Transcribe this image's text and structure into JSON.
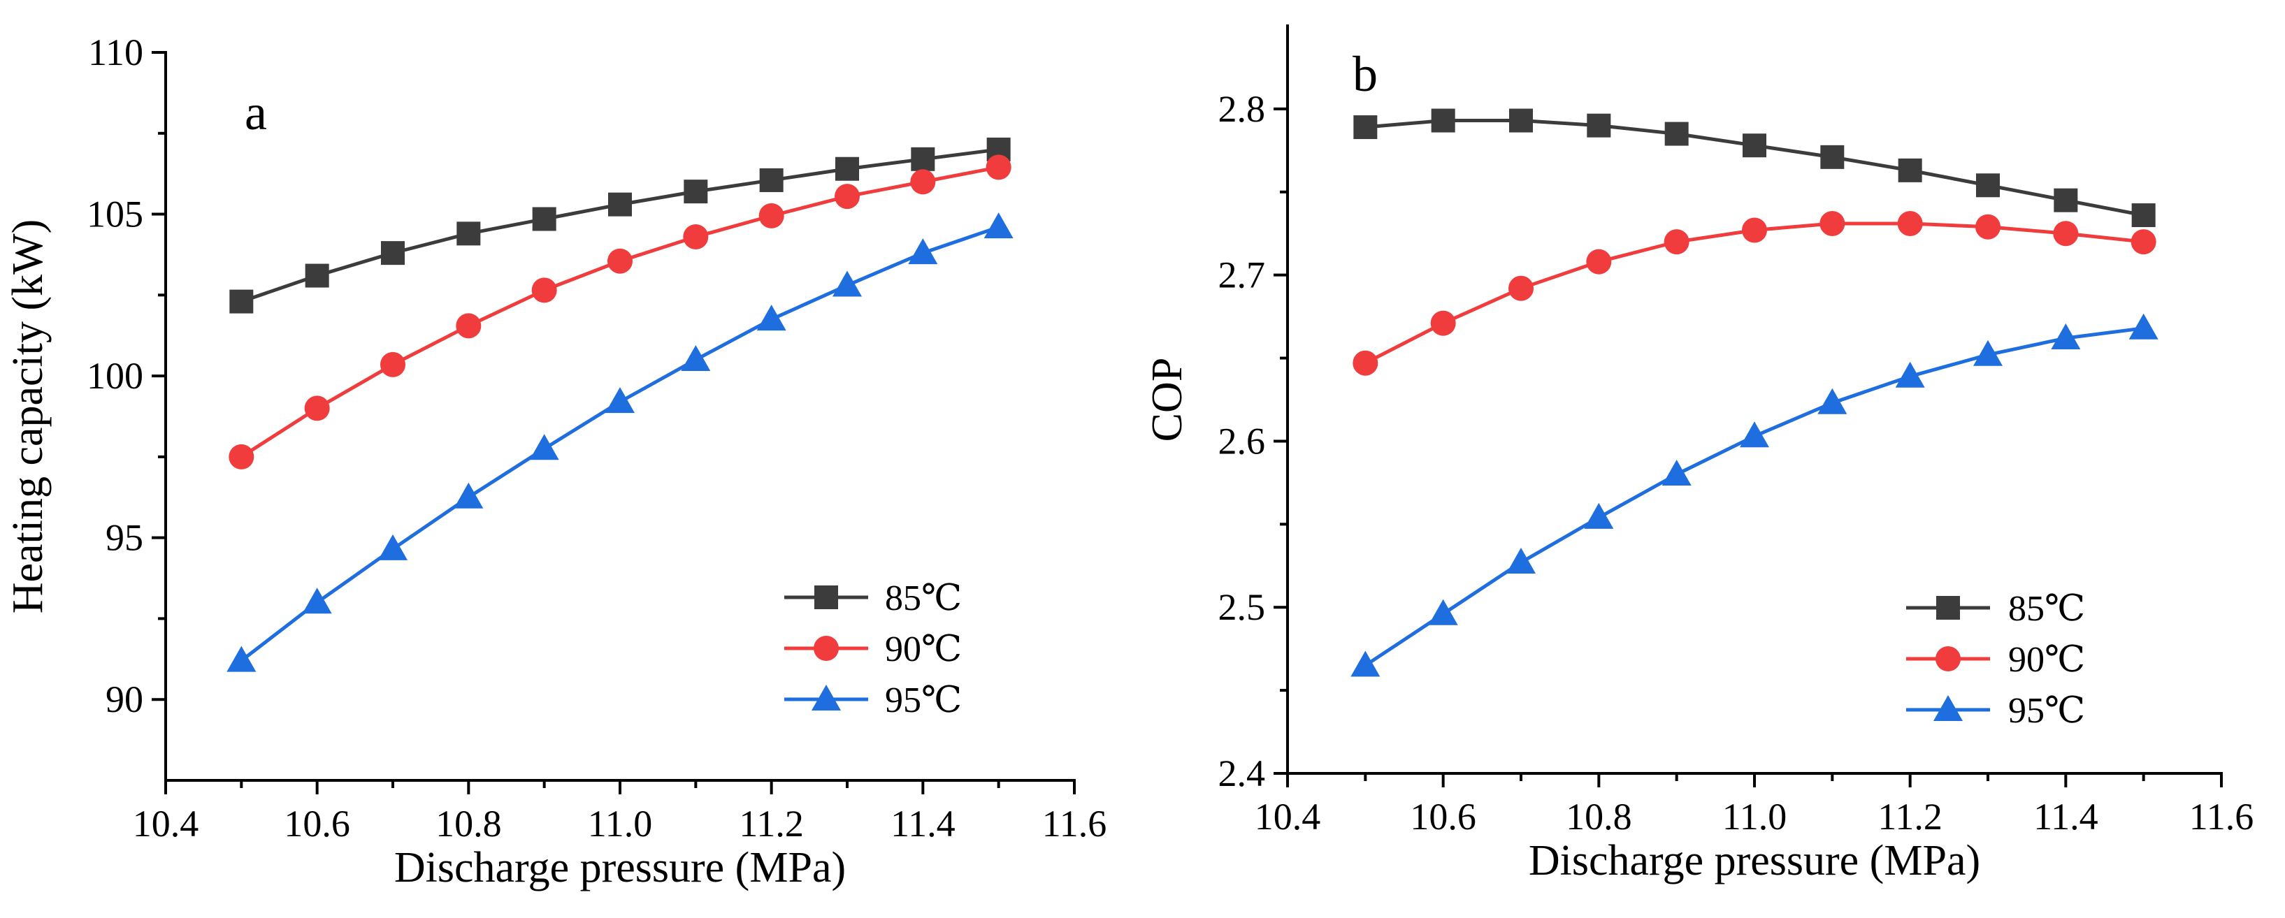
{
  "figure": {
    "series_style": [
      {
        "name": "85℃",
        "color": "#3c3c3c",
        "marker": "square"
      },
      {
        "name": "90℃",
        "color": "#f03c3c",
        "marker": "circle"
      },
      {
        "name": "95℃",
        "color": "#1e6ee0",
        "marker": "triangle"
      }
    ]
  },
  "chart_data": [
    {
      "type": "line",
      "panel_label": "a",
      "title": "",
      "xlabel": "Discharge pressure (MPa)",
      "ylabel": "Heating capacity (kW)",
      "xlim": [
        10.4,
        11.6
      ],
      "ylim": [
        87.5,
        110
      ],
      "xticks": [
        "10.4",
        "10.6",
        "10.8",
        "11.0",
        "11.2",
        "11.4",
        "11.6"
      ],
      "yticks": [
        "90",
        "95",
        "100",
        "105",
        "110"
      ],
      "legend_position": "bottom-right",
      "x": [
        10.5,
        10.6,
        10.7,
        10.8,
        10.9,
        11.0,
        11.1,
        11.2,
        11.3,
        11.4,
        11.5
      ],
      "series": [
        {
          "name": "85℃",
          "values": [
            102.3,
            103.1,
            103.8,
            104.4,
            104.85,
            105.3,
            105.7,
            106.05,
            106.4,
            106.7,
            107.0
          ]
        },
        {
          "name": "90℃",
          "values": [
            97.5,
            99.0,
            100.35,
            101.55,
            102.65,
            103.55,
            104.3,
            104.95,
            105.55,
            106.0,
            106.45
          ]
        },
        {
          "name": "95℃",
          "values": [
            91.2,
            93.0,
            94.65,
            96.25,
            97.75,
            99.2,
            100.5,
            101.75,
            102.8,
            103.8,
            104.6
          ]
        }
      ]
    },
    {
      "type": "line",
      "panel_label": "b",
      "title": "",
      "xlabel": "Discharge pressure (MPa)",
      "ylabel": "COP",
      "xlim": [
        10.4,
        11.6
      ],
      "ylim": [
        2.4,
        2.85
      ],
      "xticks": [
        "10.4",
        "10.6",
        "10.8",
        "11.0",
        "11.2",
        "11.4",
        "11.6"
      ],
      "yticks": [
        "2.4",
        "2.5",
        "2.6",
        "2.7",
        "2.8"
      ],
      "legend_position": "bottom-right",
      "x": [
        10.5,
        10.6,
        10.7,
        10.8,
        10.9,
        11.0,
        11.1,
        11.2,
        11.3,
        11.4,
        11.5
      ],
      "series": [
        {
          "name": "85℃",
          "values": [
            2.789,
            2.793,
            2.793,
            2.79,
            2.785,
            2.778,
            2.771,
            2.763,
            2.754,
            2.745,
            2.736
          ]
        },
        {
          "name": "90℃",
          "values": [
            2.647,
            2.671,
            2.692,
            2.708,
            2.72,
            2.727,
            2.731,
            2.731,
            2.729,
            2.725,
            2.72
          ]
        },
        {
          "name": "95℃",
          "values": [
            2.465,
            2.496,
            2.527,
            2.554,
            2.58,
            2.603,
            2.623,
            2.639,
            2.652,
            2.662,
            2.668
          ]
        }
      ]
    }
  ]
}
